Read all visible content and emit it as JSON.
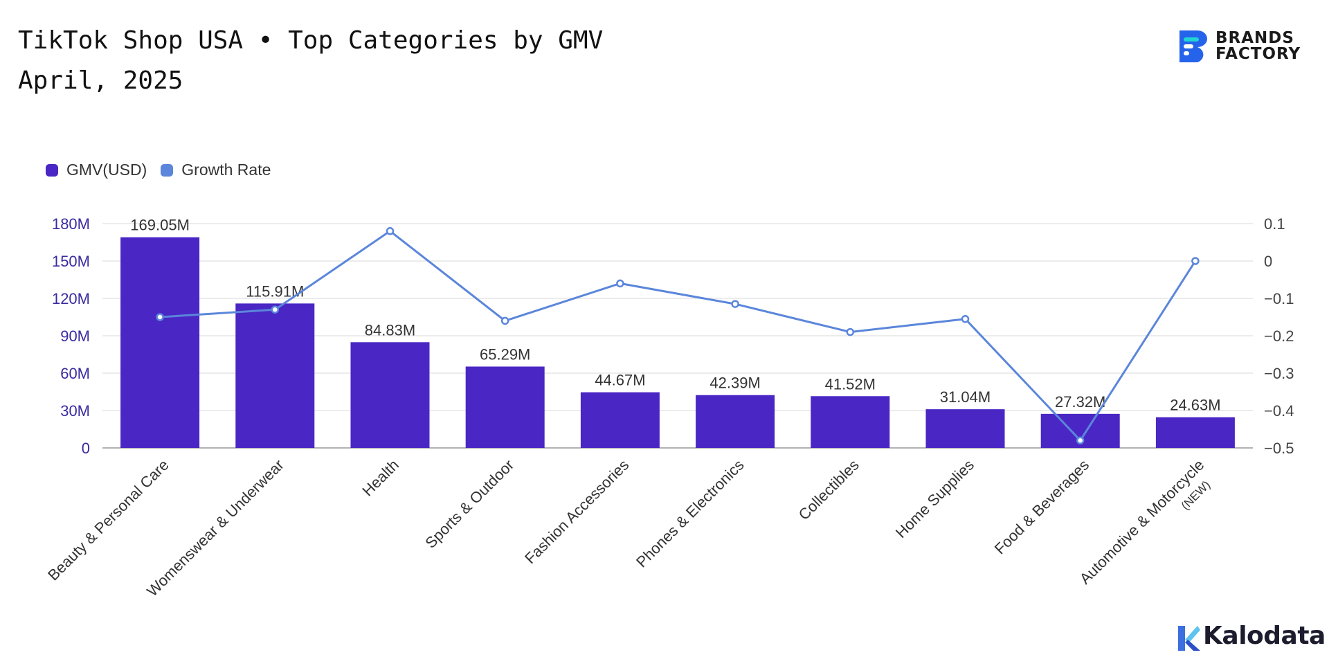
{
  "title": {
    "line1": "TikTok Shop USA • Top Categories by GMV",
    "line2": "April, 2025"
  },
  "logos": {
    "brand_line1": "BRANDS",
    "brand_line2": "FACTORY",
    "kalodata": "Kalodata"
  },
  "colors": {
    "bar": "#4a26c4",
    "line": "#5b86db",
    "grid": "#e6e6e6",
    "brand_blue": "#2563eb",
    "brand_teal": "#22d3d3"
  },
  "chart_data": {
    "type": "bar",
    "categories": [
      "Beauty & Personal Care",
      "Womenswear & Underwear",
      "Health",
      "Sports & Outdoor",
      "Fashion Accessories",
      "Phones & Electronics",
      "Collectibles",
      "Home Supplies",
      "Food & Beverages",
      "Automotive & Motorcycle"
    ],
    "category_notes": [
      "",
      "",
      "",
      "",
      "",
      "",
      "",
      "",
      "",
      "(NEW)"
    ],
    "series": [
      {
        "name": "GMV(USD)",
        "type": "bar",
        "axis": "left",
        "values": [
          169.05,
          115.91,
          84.83,
          65.29,
          44.67,
          42.39,
          41.52,
          31.04,
          27.32,
          24.63
        ],
        "labels": [
          "169.05M",
          "115.91M",
          "84.83M",
          "65.29M",
          "44.67M",
          "42.39M",
          "41.52M",
          "31.04M",
          "27.32M",
          "24.63M"
        ]
      },
      {
        "name": "Growth Rate",
        "type": "line",
        "axis": "right",
        "values": [
          -0.15,
          -0.13,
          0.08,
          -0.16,
          -0.06,
          -0.115,
          -0.19,
          -0.155,
          -0.48,
          0.0
        ]
      }
    ],
    "y_left": {
      "ylim": [
        0,
        180
      ],
      "ticks": [
        0,
        30,
        60,
        90,
        120,
        150,
        180
      ],
      "tick_labels": [
        "0",
        "30M",
        "60M",
        "90M",
        "120M",
        "150M",
        "180M"
      ]
    },
    "y_right": {
      "ylim": [
        -0.5,
        0.1
      ],
      "ticks": [
        -0.5,
        -0.4,
        -0.3,
        -0.2,
        -0.1,
        0,
        0.1
      ],
      "tick_labels": [
        "−0.5",
        "−0.4",
        "−0.3",
        "−0.2",
        "−0.1",
        "0",
        "0.1"
      ]
    },
    "grid": true,
    "legend": "top-left"
  }
}
